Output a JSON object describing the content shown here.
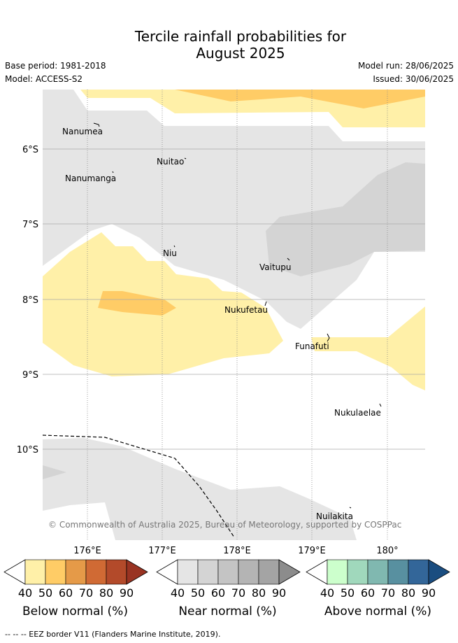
{
  "title_line1": "Tercile rainfall probabilities for",
  "title_line2": "August 2025",
  "base_period": "Base period: 1981-2018",
  "model": "Model: ACCESS-S2",
  "model_run": "Model run: 28/06/2025",
  "issued": "Issued: 30/06/2025",
  "copyright": "© Commonwealth of Australia 2025, Bureau of Meteorology, supported by COSPPac",
  "lat_labels": [
    "6°S",
    "7°S",
    "8°S",
    "9°S",
    "10°S"
  ],
  "lon_labels": [
    "176°E",
    "177°E",
    "178°E",
    "179°E",
    "180°"
  ],
  "places": [
    {
      "name": "Nanumea"
    },
    {
      "name": "Nuitao"
    },
    {
      "name": "Nanumanga"
    },
    {
      "name": "Niu"
    },
    {
      "name": "Vaitupu"
    },
    {
      "name": "Nukufetau"
    },
    {
      "name": "Funafuti"
    },
    {
      "name": "Nukulaelae"
    },
    {
      "name": "Nuilakita"
    }
  ],
  "legends": [
    {
      "label": "Below normal (%)",
      "ticks": [
        "40",
        "50",
        "60",
        "70",
        "80",
        "90"
      ],
      "colors": [
        "#fff0a8",
        "#ffcc66",
        "#e59a48",
        "#d06a34",
        "#b34a2a",
        "#993322"
      ]
    },
    {
      "label": "Near normal (%)",
      "ticks": [
        "40",
        "50",
        "60",
        "70",
        "80",
        "90"
      ],
      "colors": [
        "#e5e5e5",
        "#d4d4d4",
        "#c4c4c4",
        "#b4b4b4",
        "#a4a4a4",
        "#8c8c8c"
      ]
    },
    {
      "label": "Above normal (%)",
      "ticks": [
        "40",
        "50",
        "60",
        "70",
        "80",
        "90"
      ],
      "colors": [
        "#ccffcc",
        "#a0d8bc",
        "#80b8b0",
        "#5890a0",
        "#336699",
        "#1a4d80"
      ]
    }
  ],
  "eez_note": "-- -- -- EEZ border V11 (Flanders Marine Institute, 2019)."
}
